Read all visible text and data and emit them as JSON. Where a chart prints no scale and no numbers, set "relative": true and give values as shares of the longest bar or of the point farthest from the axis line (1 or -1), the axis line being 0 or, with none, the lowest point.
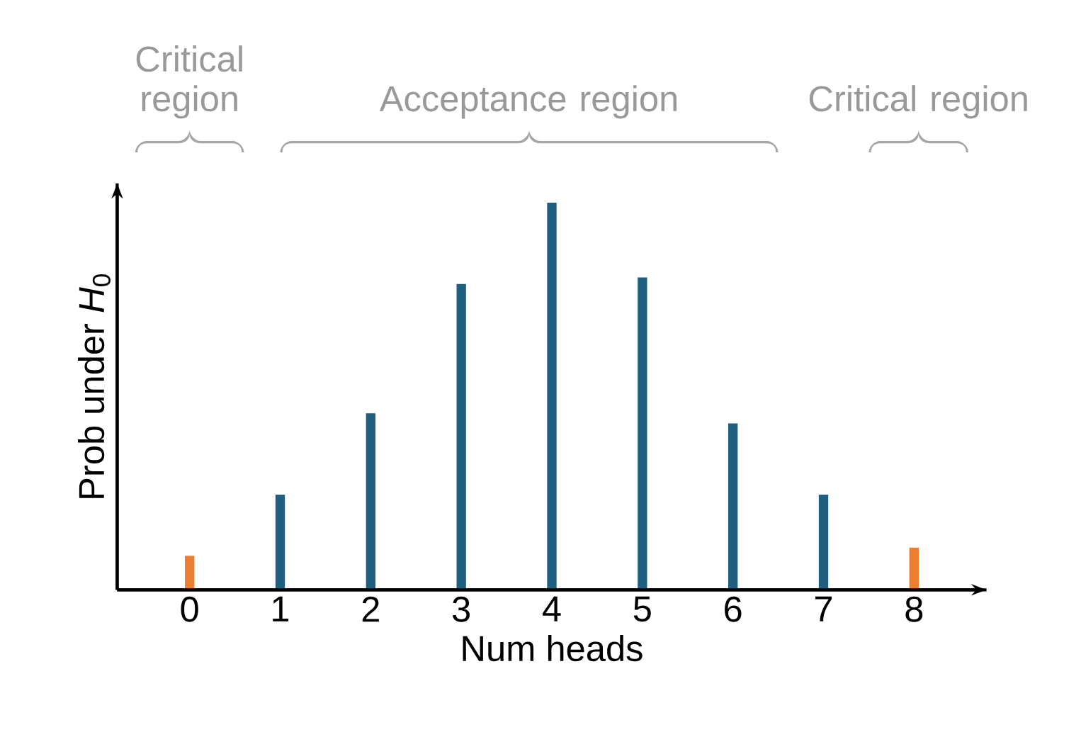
{
  "chart_data": {
    "type": "bar",
    "relative": true,
    "xlabel": "Num heads",
    "ylabel": "Prob under *H*$_{0}$",
    "categories": [
      "0",
      "1",
      "2",
      "3",
      "4",
      "5",
      "6",
      "7",
      "8"
    ],
    "values": [
      0.088,
      0.246,
      0.456,
      0.79,
      1,
      0.807,
      0.43,
      0.246,
      0.109
    ],
    "colors": [
      "#ed7d31",
      "#1f5f80",
      "#1f5f80",
      "#1f5f80",
      "#1f5f80",
      "#1f5f80",
      "#1f5f80",
      "#1f5f80",
      "#ed7d31"
    ],
    "annotations": [
      "Critical region",
      "Acceptance region",
      "Critical region"
    ]
  }
}
